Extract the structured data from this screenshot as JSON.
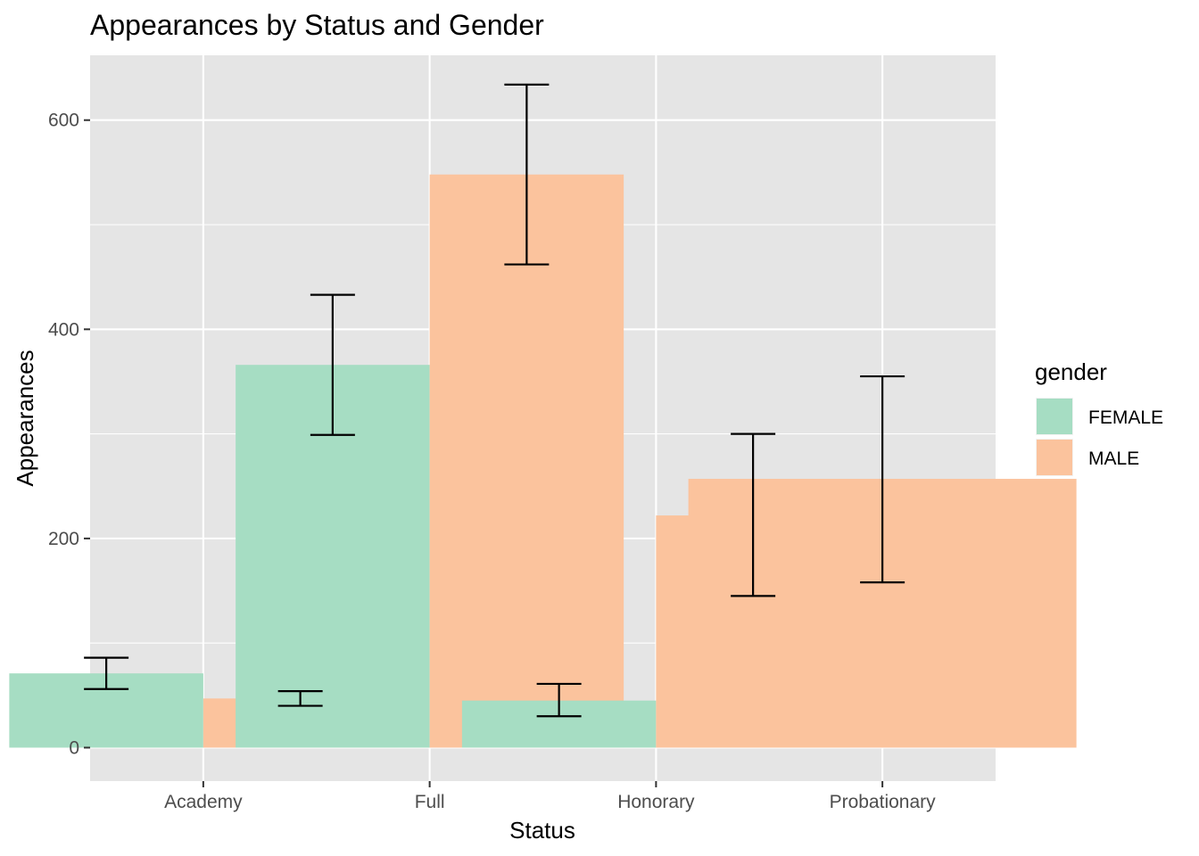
{
  "chart_data": {
    "type": "bar",
    "title": "Appearances by Status and Gender",
    "xlabel": "Status",
    "ylabel": "Appearances",
    "categories": [
      "Academy",
      "Full",
      "Honorary",
      "Probationary"
    ],
    "ylim": [
      -32,
      662
    ],
    "yticks": [
      0,
      200,
      400,
      600
    ],
    "ytick_labels": [
      "0",
      "200",
      "400",
      "600"
    ],
    "grid": true,
    "legend": {
      "title": "gender",
      "position": "right"
    },
    "series": [
      {
        "name": "FEMALE",
        "color": "#a6ddc3",
        "values": [
          71,
          366,
          45,
          null
        ],
        "error_low": [
          56,
          299,
          30,
          null
        ],
        "error_high": [
          86,
          433,
          61,
          null
        ]
      },
      {
        "name": "MALE",
        "color": "#fbc39d",
        "values": [
          47,
          548,
          222,
          257
        ],
        "error_low": [
          40,
          462,
          145,
          158
        ],
        "error_high": [
          54,
          634,
          300,
          355
        ]
      }
    ],
    "panel_color": "#e5e5e5",
    "grid_color": "#ffffff",
    "errorbar_color": "#000000"
  }
}
